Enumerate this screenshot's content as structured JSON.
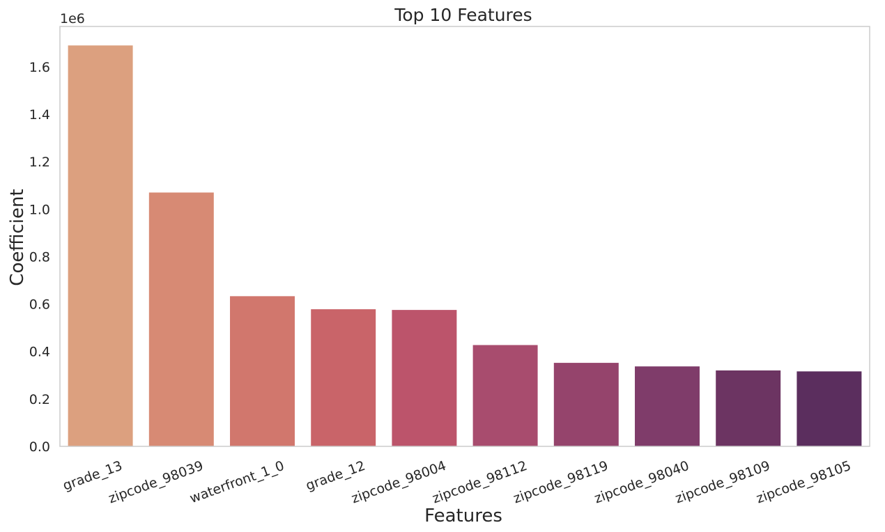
{
  "chart_data": {
    "type": "bar",
    "title": "Top 10 Features",
    "xlabel": "Features",
    "ylabel": "Coefficient",
    "y_multiplier_label": "1e6",
    "y_scale": 1000000,
    "ylim": [
      0,
      1.77
    ],
    "yticks": [
      0.0,
      0.2,
      0.4,
      0.6,
      0.8,
      1.0,
      1.2,
      1.4,
      1.6
    ],
    "ytick_labels": [
      "0.0",
      "0.2",
      "0.4",
      "0.6",
      "0.8",
      "1.0",
      "1.2",
      "1.4",
      "1.6"
    ],
    "grid": false,
    "legend": "none",
    "categories": [
      "grade_13",
      "zipcode_98039",
      "waterfront_1_0",
      "grade_12",
      "zipcode_98004",
      "zipcode_98112",
      "zipcode_98119",
      "zipcode_98040",
      "zipcode_98109",
      "zipcode_98105"
    ],
    "values": [
      1690000,
      1070000,
      633000,
      578000,
      575000,
      427000,
      352000,
      337000,
      320000,
      316000
    ],
    "colors": [
      "#dca07f",
      "#d78a74",
      "#d1776d",
      "#c96469",
      "#bc546b",
      "#a84c6e",
      "#95446c",
      "#7f3c6a",
      "#6c3462",
      "#5b2e5e"
    ]
  }
}
